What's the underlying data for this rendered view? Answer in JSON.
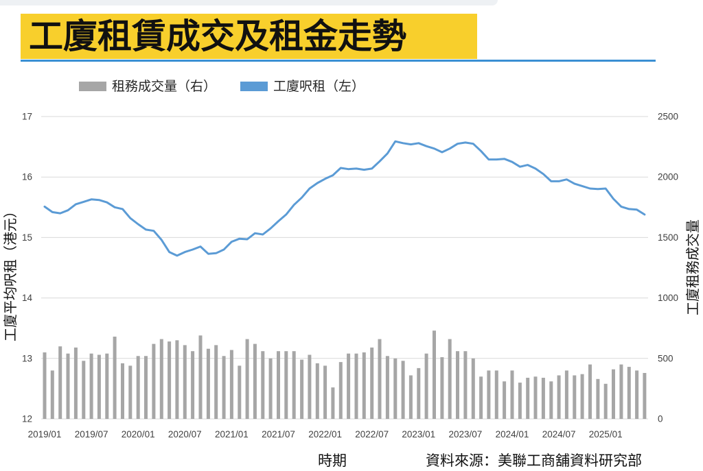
{
  "page": {
    "source": "資料來源：美聯工商舖資料研究部"
  },
  "colors": {
    "title_bg": "#F8CF2C",
    "rule": "#3A8FD3",
    "grid": "#D9D9D9"
  },
  "chart_data": {
    "type": "bar",
    "title": "工廈租賃成交及租金走勢",
    "xlabel": "時期",
    "ylabel_left": "工廈平均呎租（港元）",
    "ylabel_right": "工廈租務成交量",
    "ylim_left": [
      12,
      17
    ],
    "ylim_right": [
      0,
      2500
    ],
    "yticks_left": [
      12,
      13,
      14,
      15,
      16,
      17
    ],
    "yticks_right": [
      0,
      500,
      1000,
      1500,
      2000,
      2500
    ],
    "grid": true,
    "legend": {
      "placement": "top-left"
    },
    "x": [
      "2019/01",
      "2019/02",
      "2019/03",
      "2019/04",
      "2019/05",
      "2019/06",
      "2019/07",
      "2019/08",
      "2019/09",
      "2019/10",
      "2019/11",
      "2019/12",
      "2020/01",
      "2020/02",
      "2020/03",
      "2020/04",
      "2020/05",
      "2020/06",
      "2020/07",
      "2020/08",
      "2020/09",
      "2020/10",
      "2020/11",
      "2020/12",
      "2021/01",
      "2021/02",
      "2021/03",
      "2021/04",
      "2021/05",
      "2021/06",
      "2021/07",
      "2021/08",
      "2021/09",
      "2021/10",
      "2021/11",
      "2021/12",
      "2022/01",
      "2022/02",
      "2022/03",
      "2022/04",
      "2022/05",
      "2022/06",
      "2022/07",
      "2022/08",
      "2022/09",
      "2022/10",
      "2022/11",
      "2022/12",
      "2023/01",
      "2023/02",
      "2023/03",
      "2023/04",
      "2023/05",
      "2023/06",
      "2023/07",
      "2023/08",
      "2023/09",
      "2023/10",
      "2023/11",
      "2023/12",
      "2024/01",
      "2024/02",
      "2024/03",
      "2024/04",
      "2024/05",
      "2024/06",
      "2024/07",
      "2024/08",
      "2024/09",
      "2024/10",
      "2024/11",
      "2024/12",
      "2025/01",
      "2025/02",
      "2025/03",
      "2025/04",
      "2025/05",
      "2025/06"
    ],
    "series": [
      {
        "name": "租務成交量（右）",
        "type": "bar",
        "axis": "right",
        "color": "#A6A6A6",
        "values": [
          550,
          400,
          600,
          540,
          590,
          480,
          540,
          530,
          540,
          680,
          460,
          440,
          520,
          520,
          620,
          660,
          640,
          650,
          610,
          560,
          690,
          580,
          610,
          520,
          570,
          440,
          660,
          620,
          560,
          500,
          560,
          560,
          560,
          490,
          530,
          460,
          440,
          260,
          470,
          540,
          540,
          550,
          590,
          660,
          520,
          500,
          480,
          360,
          420,
          540,
          730,
          510,
          660,
          560,
          560,
          500,
          350,
          400,
          400,
          310,
          400,
          300,
          340,
          350,
          340,
          310,
          360,
          400,
          360,
          370,
          450,
          330,
          290,
          410,
          450,
          430,
          400,
          380
        ]
      },
      {
        "name": "工廈呎租（左）",
        "type": "line",
        "axis": "left",
        "color": "#5B9BD5",
        "values": [
          15.51,
          15.42,
          15.4,
          15.45,
          15.55,
          15.59,
          15.63,
          15.62,
          15.58,
          15.5,
          15.47,
          15.32,
          15.22,
          15.13,
          15.11,
          14.96,
          14.76,
          14.7,
          14.76,
          14.8,
          14.85,
          14.73,
          14.74,
          14.8,
          14.93,
          14.98,
          14.97,
          15.07,
          15.05,
          15.15,
          15.27,
          15.38,
          15.54,
          15.66,
          15.81,
          15.9,
          15.97,
          16.03,
          16.15,
          16.13,
          16.14,
          16.12,
          16.14,
          16.26,
          16.39,
          16.59,
          16.56,
          16.54,
          16.56,
          16.51,
          16.47,
          16.41,
          16.47,
          16.55,
          16.57,
          16.55,
          16.43,
          16.29,
          16.29,
          16.3,
          16.25,
          16.17,
          16.2,
          16.14,
          16.05,
          15.93,
          15.93,
          15.96,
          15.89,
          15.85,
          15.81,
          15.8,
          15.81,
          15.64,
          15.51,
          15.47,
          15.46,
          15.38
        ]
      }
    ]
  }
}
